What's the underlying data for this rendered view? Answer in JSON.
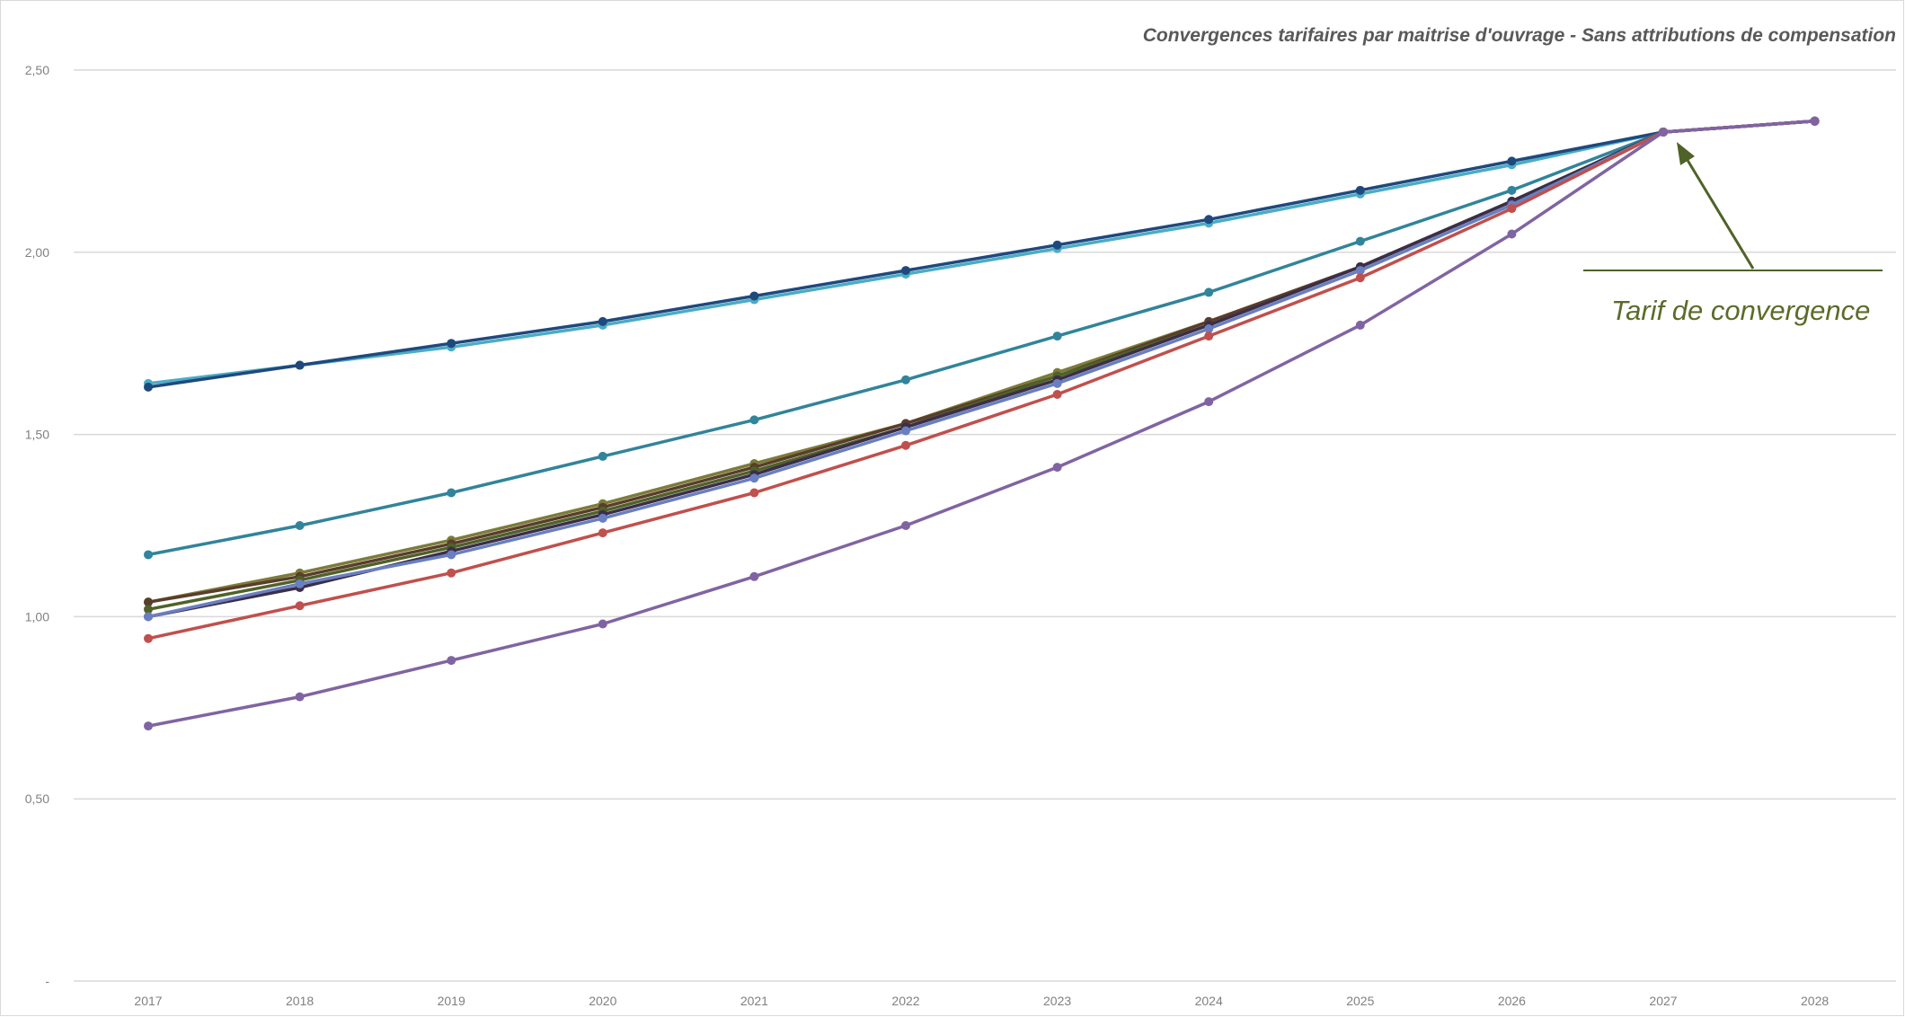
{
  "chart_data": {
    "type": "line",
    "title": "Convergences tarifaires par maitrise d'ouvrage - Sans attributions de compensation",
    "xlabel": "",
    "ylabel": "",
    "x": [
      "2017",
      "2018",
      "2019",
      "2020",
      "2021",
      "2022",
      "2023",
      "2024",
      "2025",
      "2026",
      "2027",
      "2028"
    ],
    "ylim": [
      0,
      2.5
    ],
    "yticks": [
      0,
      0.5,
      1.0,
      1.5,
      2.0,
      2.5
    ],
    "ytick_labels": [
      "-",
      "0,50",
      "1,00",
      "1,50",
      "2,00",
      "2,50"
    ],
    "grid": "horizontal",
    "legend": "none",
    "series": [
      {
        "color": "#4bacc6",
        "values": [
          1.64,
          1.69,
          1.74,
          1.8,
          1.87,
          1.94,
          2.01,
          2.08,
          2.16,
          2.24,
          2.33,
          2.36
        ]
      },
      {
        "color": "#1f497d",
        "values": [
          1.63,
          1.69,
          1.75,
          1.81,
          1.88,
          1.95,
          2.02,
          2.09,
          2.17,
          2.25,
          2.33,
          2.36
        ]
      },
      {
        "color": "#31849b",
        "values": [
          1.17,
          1.25,
          1.34,
          1.44,
          1.54,
          1.65,
          1.77,
          1.89,
          2.03,
          2.17,
          2.33,
          2.36
        ]
      },
      {
        "color": "#7b7c3a",
        "values": [
          1.04,
          1.12,
          1.21,
          1.31,
          1.42,
          1.53,
          1.67,
          1.81,
          1.96,
          2.14,
          2.33,
          2.36
        ]
      },
      {
        "color": "#5a3d2b",
        "values": [
          1.04,
          1.11,
          1.2,
          1.3,
          1.41,
          1.53,
          1.66,
          1.81,
          1.96,
          2.14,
          2.33,
          2.36
        ]
      },
      {
        "color": "#4f6228",
        "values": [
          1.02,
          1.1,
          1.19,
          1.29,
          1.4,
          1.52,
          1.66,
          1.8,
          1.96,
          2.14,
          2.33,
          2.36
        ]
      },
      {
        "color": "#3b2e4a",
        "values": [
          1.0,
          1.08,
          1.18,
          1.28,
          1.39,
          1.52,
          1.65,
          1.8,
          1.96,
          2.14,
          2.33,
          2.36
        ]
      },
      {
        "color": "#6a7fc1",
        "values": [
          1.0,
          1.09,
          1.17,
          1.27,
          1.38,
          1.51,
          1.64,
          1.79,
          1.95,
          2.13,
          2.33,
          2.36
        ]
      },
      {
        "color": "#c0504d",
        "values": [
          0.94,
          1.03,
          1.12,
          1.23,
          1.34,
          1.47,
          1.61,
          1.77,
          1.93,
          2.12,
          2.33,
          2.36
        ]
      },
      {
        "color": "#8064a2",
        "values": [
          0.7,
          0.78,
          0.88,
          0.98,
          1.11,
          1.25,
          1.41,
          1.59,
          1.8,
          2.05,
          2.33,
          2.36
        ]
      }
    ],
    "annotations": [
      {
        "text": "Tarif de convergence",
        "x": "2027",
        "y": 2.33,
        "color": "#5c6b29"
      }
    ]
  }
}
